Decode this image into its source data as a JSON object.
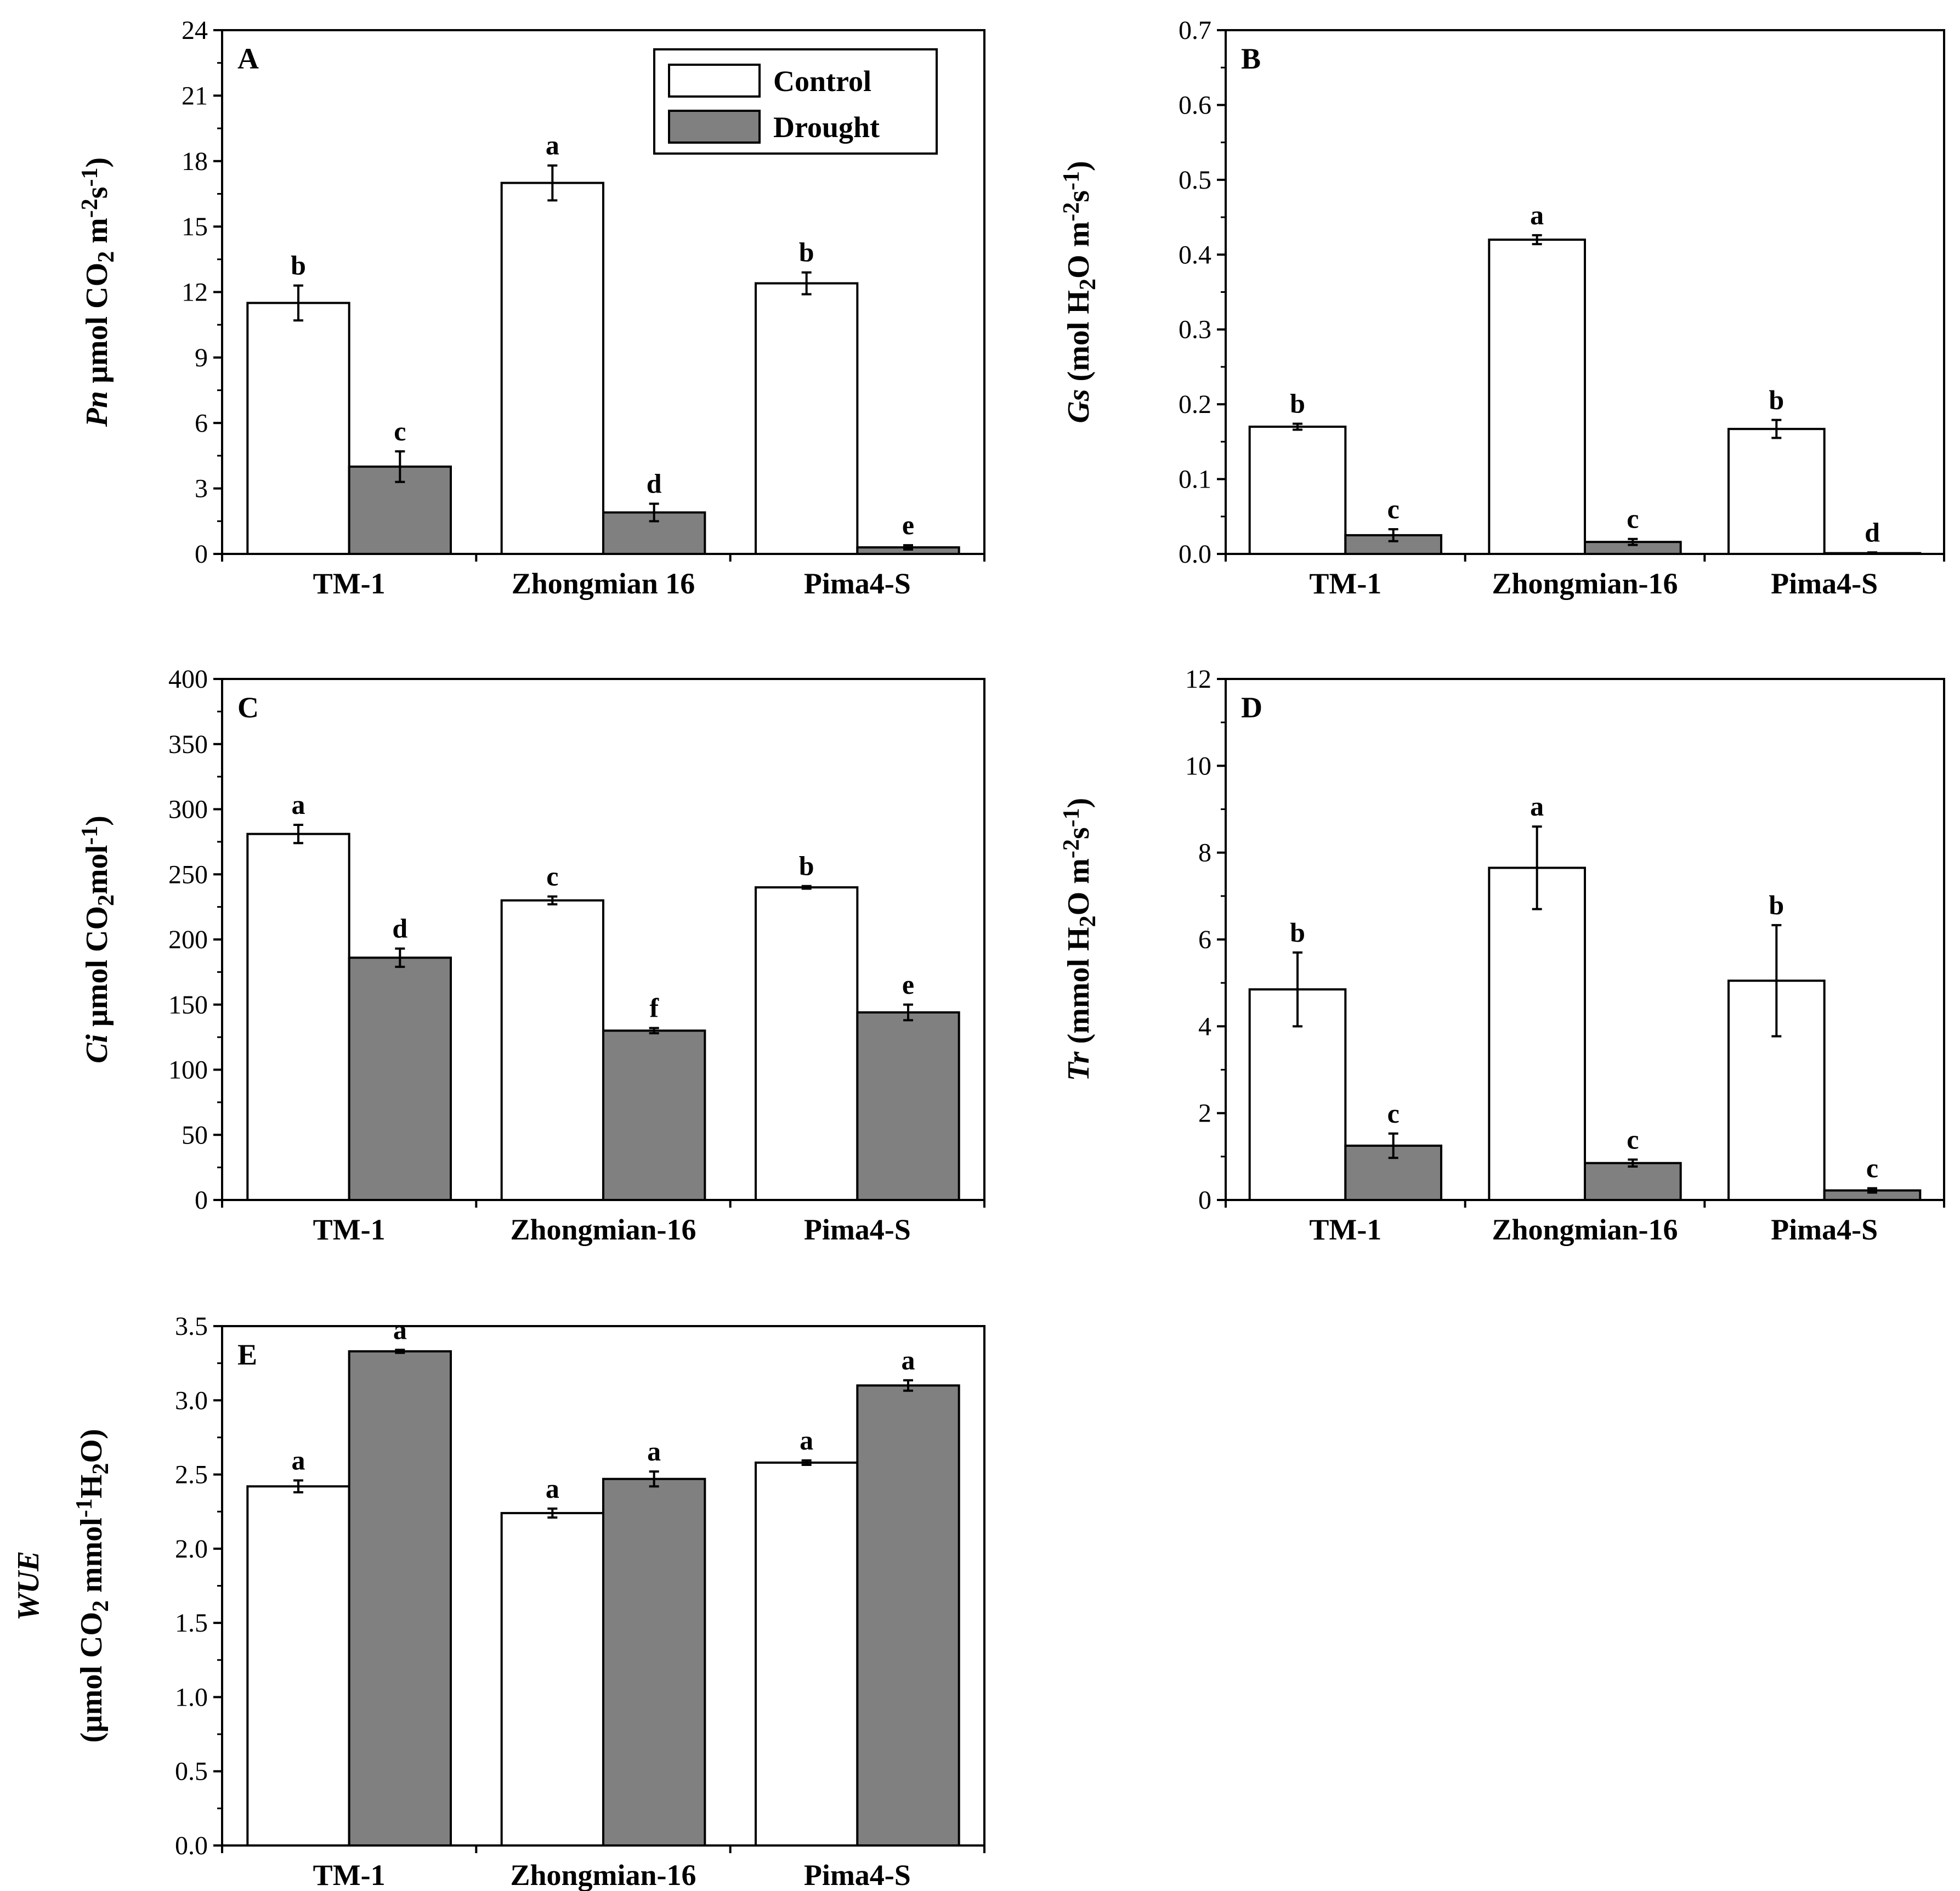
{
  "legend": {
    "control_label": "Control",
    "drought_label": "Drought"
  },
  "colors": {
    "control": "#ffffff",
    "drought": "#808080",
    "axis": "#000000"
  },
  "chart_data": [
    {
      "panel": "A",
      "type": "bar",
      "ylabel_parts": [
        {
          "t": "Pn",
          "style": "italic"
        },
        {
          "t": " μmol CO",
          "style": "normal"
        },
        {
          "t": "2",
          "style": "sub"
        },
        {
          "t": " m",
          "style": "normal"
        },
        {
          "t": "-2",
          "style": "sup"
        },
        {
          "t": "s",
          "style": "normal"
        },
        {
          "t": "-1",
          "style": "sup"
        },
        {
          "t": ")",
          "style": "normal"
        }
      ],
      "categories": [
        "TM-1",
        "Zhongmian 16",
        "Pima4-S"
      ],
      "ylim": [
        0,
        24
      ],
      "yticks": [
        0,
        3,
        6,
        9,
        12,
        15,
        18,
        21,
        24
      ],
      "ytick_labels": [
        "0",
        "3",
        "6",
        "9",
        "12",
        "15",
        "18",
        "21",
        "24"
      ],
      "series": [
        {
          "name": "Control",
          "values": [
            11.5,
            17.0,
            12.4
          ],
          "errors": [
            0.8,
            0.8,
            0.5
          ],
          "letters": [
            "b",
            "a",
            "b"
          ]
        },
        {
          "name": "Drought",
          "values": [
            4.0,
            1.9,
            0.3
          ],
          "errors": [
            0.7,
            0.4,
            0.1
          ],
          "letters": [
            "c",
            "d",
            "e"
          ]
        }
      ],
      "legend": "top-right"
    },
    {
      "panel": "B",
      "type": "bar",
      "ylabel_parts": [
        {
          "t": "Gs",
          "style": "italic"
        },
        {
          "t": " (mol H",
          "style": "normal"
        },
        {
          "t": "2",
          "style": "sub"
        },
        {
          "t": "O m",
          "style": "normal"
        },
        {
          "t": "-2",
          "style": "sup"
        },
        {
          "t": "s",
          "style": "normal"
        },
        {
          "t": "-1",
          "style": "sup"
        },
        {
          "t": ")",
          "style": "normal"
        }
      ],
      "categories": [
        "TM-1",
        "Zhongmian-16",
        "Pima4-S"
      ],
      "ylim": [
        0,
        0.7
      ],
      "yticks": [
        0,
        0.1,
        0.2,
        0.3,
        0.4,
        0.5,
        0.6,
        0.7
      ],
      "ytick_labels": [
        "0.0",
        "0.1",
        "0.2",
        "0.3",
        "0.4",
        "0.5",
        "0.6",
        "0.7"
      ],
      "series": [
        {
          "name": "Control",
          "values": [
            0.17,
            0.42,
            0.167
          ],
          "errors": [
            0.004,
            0.006,
            0.012
          ],
          "letters": [
            "b",
            "a",
            "b"
          ]
        },
        {
          "name": "Drought",
          "values": [
            0.025,
            0.016,
            0.001
          ],
          "errors": [
            0.008,
            0.004,
            0.001
          ],
          "letters": [
            "c",
            "c",
            "d"
          ]
        }
      ]
    },
    {
      "panel": "C",
      "type": "bar",
      "ylabel_parts": [
        {
          "t": "Ci",
          "style": "italic"
        },
        {
          "t": " μmol CO",
          "style": "normal"
        },
        {
          "t": "2",
          "style": "sub"
        },
        {
          "t": "mol",
          "style": "normal"
        },
        {
          "t": "-1",
          "style": "sup"
        },
        {
          "t": ")",
          "style": "normal"
        }
      ],
      "categories": [
        "TM-1",
        "Zhongmian-16",
        "Pima4-S"
      ],
      "ylim": [
        0,
        400
      ],
      "yticks": [
        0,
        50,
        100,
        150,
        200,
        250,
        300,
        350,
        400
      ],
      "ytick_labels": [
        "0",
        "50",
        "100",
        "150",
        "200",
        "250",
        "300",
        "350",
        "400"
      ],
      "series": [
        {
          "name": "Control",
          "values": [
            281,
            230,
            240
          ],
          "errors": [
            7,
            3,
            1
          ],
          "letters": [
            "a",
            "c",
            "b"
          ]
        },
        {
          "name": "Drought",
          "values": [
            186,
            130,
            144
          ],
          "errors": [
            7,
            2,
            6
          ],
          "letters": [
            "d",
            "f",
            "e"
          ]
        }
      ]
    },
    {
      "panel": "D",
      "type": "bar",
      "ylabel_parts": [
        {
          "t": "Tr",
          "style": "italic"
        },
        {
          "t": " (mmol H",
          "style": "normal"
        },
        {
          "t": "2",
          "style": "sub"
        },
        {
          "t": "O m",
          "style": "normal"
        },
        {
          "t": "-2",
          "style": "sup"
        },
        {
          "t": "s",
          "style": "normal"
        },
        {
          "t": "-1",
          "style": "sup"
        },
        {
          "t": ")",
          "style": "normal"
        }
      ],
      "categories": [
        "TM-1",
        "Zhongmian-16",
        "Pima4-S"
      ],
      "ylim": [
        0,
        12
      ],
      "yticks": [
        0,
        2,
        4,
        6,
        8,
        10,
        12
      ],
      "ytick_labels": [
        "0",
        "2",
        "4",
        "6",
        "8",
        "10",
        "12"
      ],
      "series": [
        {
          "name": "Control",
          "values": [
            4.85,
            7.65,
            5.05
          ],
          "errors": [
            0.85,
            0.95,
            1.28
          ],
          "letters": [
            "b",
            "a",
            "b"
          ]
        },
        {
          "name": "Drought",
          "values": [
            1.25,
            0.85,
            0.22
          ],
          "errors": [
            0.28,
            0.08,
            0.05
          ],
          "letters": [
            "c",
            "c",
            "c"
          ]
        }
      ]
    },
    {
      "panel": "E",
      "type": "bar",
      "ylabel_lines": [
        [
          {
            "t": "WUE",
            "style": "italic"
          }
        ],
        [
          {
            "t": "(μmol CO",
            "style": "normal"
          },
          {
            "t": "2",
            "style": "sub"
          },
          {
            "t": " mmol",
            "style": "normal"
          },
          {
            "t": "-1",
            "style": "sup"
          },
          {
            "t": "H",
            "style": "normal"
          },
          {
            "t": "2",
            "style": "sub"
          },
          {
            "t": "O)",
            "style": "normal"
          }
        ]
      ],
      "categories": [
        "TM-1",
        "Zhongmian-16",
        "Pima4-S"
      ],
      "ylim": [
        0,
        3.5
      ],
      "yticks": [
        0,
        0.5,
        1.0,
        1.5,
        2.0,
        2.5,
        3.0,
        3.5
      ],
      "ytick_labels": [
        "0.0",
        "0.5",
        "1.0",
        "1.5",
        "2.0",
        "2.5",
        "3.0",
        "3.5"
      ],
      "series": [
        {
          "name": "Control",
          "values": [
            2.42,
            2.24,
            2.58
          ],
          "errors": [
            0.04,
            0.03,
            0.015
          ],
          "letters": [
            "a",
            "a",
            "a"
          ]
        },
        {
          "name": "Drought",
          "values": [
            3.33,
            2.47,
            3.1
          ],
          "errors": [
            0.01,
            0.05,
            0.035
          ],
          "letters": [
            "a",
            "a",
            "a"
          ]
        }
      ]
    }
  ]
}
